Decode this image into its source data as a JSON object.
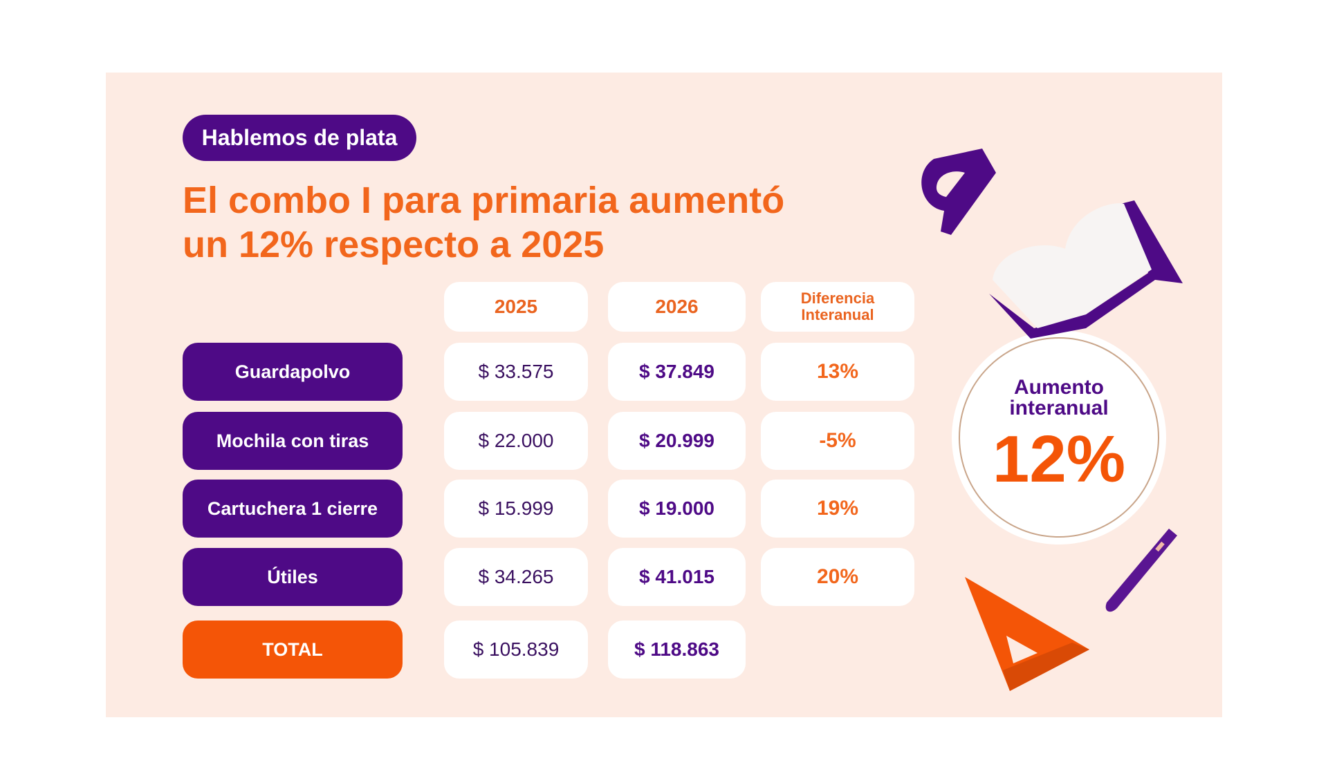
{
  "badge": "Hablemos de plata",
  "title": {
    "line1": "El combo I para primaria aumentó",
    "line2": "un 12% respecto a 2025"
  },
  "headers": [
    "2025",
    "2026",
    "Diferencia Interanual"
  ],
  "rows": [
    {
      "label": "Guardapolvo",
      "y2025": "$ 33.575",
      "y2026": "$ 37.849",
      "diff": "13%"
    },
    {
      "label": "Mochila con tiras",
      "y2025": "$ 22.000",
      "y2026": "$ 20.999",
      "diff": "-5%"
    },
    {
      "label": "Cartuchera 1 cierre",
      "y2025": "$ 15.999",
      "y2026": "$ 19.000",
      "diff": "19%"
    },
    {
      "label": "Útiles",
      "y2025": "$ 34.265",
      "y2026": "$ 41.015",
      "diff": "20%"
    }
  ],
  "total": {
    "label": "TOTAL",
    "y2025": "$ 105.839",
    "y2026": "$ 118.863"
  },
  "highlight": {
    "label": "Aumento interanual",
    "value": "12%"
  },
  "colors": {
    "purple": "#4e0a86",
    "orange": "#f45507",
    "background": "#fdebe3"
  },
  "decorations": [
    "protractor-icon",
    "open-book-icon",
    "pen-icon",
    "set-square-icon"
  ]
}
